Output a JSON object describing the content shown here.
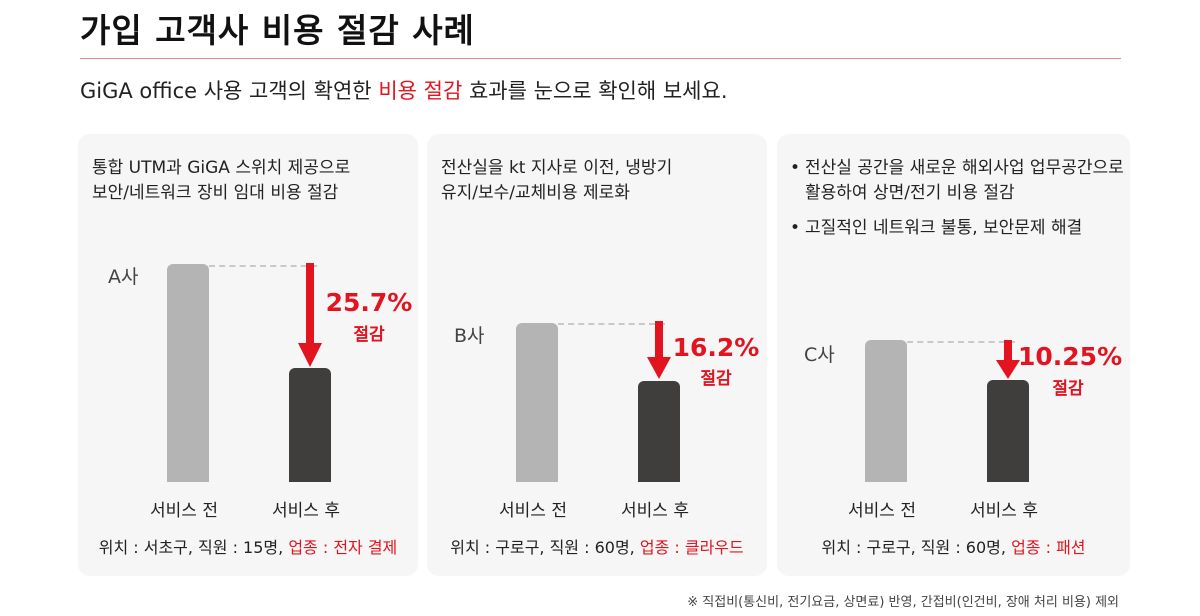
{
  "title": "가입 고객사 비용 절감 사례",
  "subtitle": {
    "before": "GiGA office 사용 고객의 확연한 ",
    "highlight": "비용 절감",
    "after": " 효과를 눈으로 확인해 보세요."
  },
  "cards": [
    {
      "desc": [
        "통합 UTM과 GiGA 스위치 제공으로",
        "보안/네트워크 장비 임대 비용 절감"
      ],
      "company": "A사",
      "percent": "25.7%",
      "cut_label": "절감",
      "before_label": "서비스 전",
      "after_label": "서비스 후",
      "location_prefix": "위치 : 서초구, 직원 : 15명, ",
      "industry": "업종 : 전자 결제"
    },
    {
      "desc": [
        "전산실을 kt 지사로 이전, 냉방기",
        "유지/보수/교체비용 제로화"
      ],
      "company": "B사",
      "percent": "16.2%",
      "cut_label": "절감",
      "before_label": "서비스 전",
      "after_label": "서비스 후",
      "location_prefix": "위치 : 구로구, 직원 : 60명, ",
      "industry": "업종 : 클라우드"
    },
    {
      "bullets": [
        "전산실 공간을 새로운 해외사업 업무공간으로 활용하여 상면/전기 비용 절감",
        "고질적인 네트워크 불통, 보안문제 해결"
      ],
      "company": "C사",
      "percent": "10.25%",
      "cut_label": "절감",
      "before_label": "서비스 전",
      "after_label": "서비스 후",
      "location_prefix": "위치 : 구로구, 직원 : 60명, ",
      "industry": "업종 : 패션"
    }
  ],
  "footnote": "※ 직접비(통신비, 전기요금, 상면료) 반영, 간접비(인건비, 장애 처리 비용) 제외",
  "colors": {
    "accent": "#e1141f",
    "bar_before": "#b4b4b4",
    "bar_after": "#403d3d",
    "card_bg": "#f6f6f6"
  }
}
